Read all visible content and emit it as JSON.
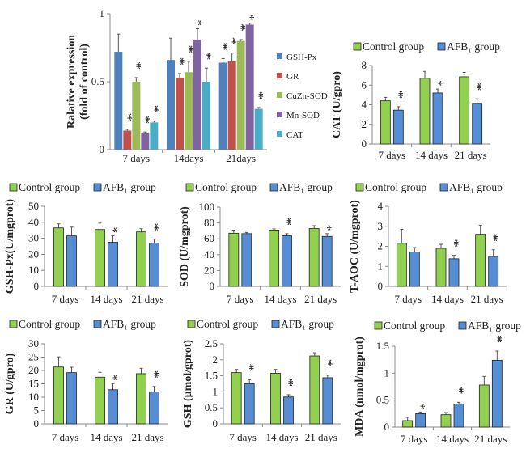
{
  "chart_data": [
    {
      "type": "bar",
      "ylabel": "Ralative expression",
      "ylabel2": "(fold of control)",
      "categories": [
        "7 days",
        "14days",
        "21days"
      ],
      "ylim": [
        0,
        1
      ],
      "yticks": [
        "0",
        "0.5",
        "1"
      ],
      "yticks_values": [
        0,
        0.5,
        1
      ],
      "legend": "right",
      "series": [
        {
          "name": "GSH-Px",
          "color": "#4f81bd",
          "values": [
            0.72,
            0.66,
            0.64
          ],
          "error": [
            0.13,
            0.16,
            0.03
          ],
          "sig": [
            "",
            "",
            "**"
          ]
        },
        {
          "name": "GR",
          "color": "#c0504d",
          "values": [
            0.14,
            0.53,
            0.65
          ],
          "error": [
            0.01,
            0.03,
            0.06
          ],
          "sig": [
            "**",
            "**",
            "**"
          ]
        },
        {
          "name": "CuZn-SOD",
          "color": "#9bbb59",
          "values": [
            0.5,
            0.57,
            0.8
          ],
          "error": [
            0.03,
            0.08,
            0.01
          ],
          "sig": [
            "**",
            "**",
            "**"
          ]
        },
        {
          "name": "Mn-SOD",
          "color": "#8064a2",
          "values": [
            0.12,
            0.81,
            0.92
          ],
          "error": [
            0.01,
            0.08,
            0.01
          ],
          "sig": [
            "**",
            "*",
            "*"
          ]
        },
        {
          "name": "CAT",
          "color": "#4bacc6",
          "values": [
            0.2,
            0.5,
            0.3
          ],
          "error": [
            0.01,
            0.1,
            0.01
          ],
          "sig": [
            "**",
            "**",
            "**"
          ]
        }
      ]
    },
    {
      "type": "bar",
      "ylabel": "CAT (U/gpro)",
      "categories": [
        "7 days",
        "14 days",
        "21 days"
      ],
      "ylim": [
        0,
        8
      ],
      "yticks": [
        "0",
        "2",
        "4",
        "6",
        "8"
      ],
      "yticks_values": [
        0,
        2,
        4,
        6,
        8
      ],
      "legend": "top",
      "series": [
        {
          "name": "Control group",
          "color": "#92d050",
          "values": [
            4.4,
            6.7,
            6.85
          ],
          "error": [
            0.35,
            0.7,
            0.45
          ],
          "sig": [
            "",
            "",
            ""
          ]
        },
        {
          "name": "AFB₁ group",
          "color": "#558ed5",
          "values": [
            3.45,
            5.2,
            4.15
          ],
          "error": [
            0.35,
            0.4,
            0.45
          ],
          "sig": [
            "**",
            "*",
            "**"
          ]
        }
      ]
    },
    {
      "type": "bar",
      "ylabel": "GSH-Px(U/mgprot)",
      "categories": [
        "7 days",
        "14 days",
        "21 days"
      ],
      "ylim": [
        0,
        50
      ],
      "yticks": [
        "0",
        "10",
        "20",
        "30",
        "40",
        "50"
      ],
      "yticks_values": [
        0,
        10,
        20,
        30,
        40,
        50
      ],
      "legend": "top",
      "series": [
        {
          "name": "Control group",
          "color": "#92d050",
          "values": [
            36.5,
            35.5,
            34
          ],
          "error": [
            2.5,
            4,
            2
          ],
          "sig": [
            "",
            "",
            ""
          ]
        },
        {
          "name": "AFB₁ group",
          "color": "#558ed5",
          "values": [
            31.5,
            27.5,
            27
          ],
          "error": [
            5.5,
            4,
            2.5
          ],
          "sig": [
            "",
            "*",
            "**"
          ]
        }
      ]
    },
    {
      "type": "bar",
      "ylabel": "SOD (U/mgprot)",
      "categories": [
        "7 days",
        "14 days",
        "21 days"
      ],
      "ylim": [
        0,
        100
      ],
      "yticks": [
        "0",
        "20",
        "40",
        "60",
        "80",
        "100"
      ],
      "yticks_values": [
        0,
        20,
        40,
        60,
        80,
        100
      ],
      "legend": "top",
      "series": [
        {
          "name": "Control group",
          "color": "#92d050",
          "values": [
            67,
            71,
            73
          ],
          "error": [
            4,
            1.5,
            3.5
          ],
          "sig": [
            "",
            "",
            ""
          ]
        },
        {
          "name": "AFB₁ group",
          "color": "#558ed5",
          "values": [
            66.5,
            64,
            63
          ],
          "error": [
            1.5,
            2.5,
            3.5
          ],
          "sig": [
            "",
            "**",
            "*"
          ]
        }
      ]
    },
    {
      "type": "bar",
      "ylabel": "T-AOC (U/mgprot)",
      "categories": [
        "7 days",
        "14 days",
        "21 days"
      ],
      "ylim": [
        0,
        4
      ],
      "yticks": [
        "0",
        "1",
        "2",
        "3",
        "4"
      ],
      "yticks_values": [
        0,
        1,
        2,
        3,
        4
      ],
      "legend": "top",
      "series": [
        {
          "name": "Control group",
          "color": "#92d050",
          "values": [
            2.15,
            1.9,
            2.6
          ],
          "error": [
            0.7,
            0.2,
            0.45
          ],
          "sig": [
            "",
            "",
            ""
          ]
        },
        {
          "name": "AFB₁ group",
          "color": "#558ed5",
          "values": [
            1.72,
            1.38,
            1.5
          ],
          "error": [
            0.22,
            0.17,
            0.33
          ],
          "sig": [
            "",
            "**",
            "**"
          ]
        }
      ]
    },
    {
      "type": "bar",
      "ylabel": "GR (U/gpro)",
      "categories": [
        "7 days",
        "14 days",
        "21 days"
      ],
      "ylim": [
        0,
        30
      ],
      "yticks": [
        "0",
        "5",
        "10",
        "15",
        "20",
        "25",
        "30"
      ],
      "yticks_values": [
        0,
        5,
        10,
        15,
        20,
        25,
        30
      ],
      "legend": "top",
      "series": [
        {
          "name": "Control group",
          "color": "#92d050",
          "values": [
            21.3,
            17.5,
            18.8
          ],
          "error": [
            3.8,
            1.8,
            2
          ],
          "sig": [
            "",
            "",
            ""
          ]
        },
        {
          "name": "AFB₁ group",
          "color": "#558ed5",
          "values": [
            19.2,
            12.8,
            12
          ],
          "error": [
            2,
            2.3,
            2
          ],
          "sig": [
            "",
            "*",
            "**"
          ]
        }
      ]
    },
    {
      "type": "bar",
      "ylabel": "GSH (μmol/gprot)",
      "categories": [
        "7 days",
        "14 days",
        "21 days"
      ],
      "ylim": [
        0,
        2.5
      ],
      "yticks": [
        "0",
        "0.5",
        "1",
        "1.5",
        "2",
        "2.5"
      ],
      "yticks_values": [
        0,
        0.5,
        1,
        1.5,
        2,
        2.5
      ],
      "legend": "top",
      "series": [
        {
          "name": "Control group",
          "color": "#92d050",
          "values": [
            1.6,
            1.58,
            2.12
          ],
          "error": [
            0.1,
            0.12,
            0.1
          ],
          "sig": [
            "",
            "",
            ""
          ]
        },
        {
          "name": "AFB₁ group",
          "color": "#558ed5",
          "values": [
            1.25,
            0.84,
            1.44
          ],
          "error": [
            0.13,
            0.07,
            0.08
          ],
          "sig": [
            "**",
            "**",
            "**"
          ]
        }
      ]
    },
    {
      "type": "bar",
      "ylabel": "MDA (nmol/mgprot)",
      "categories": [
        "7 days",
        "14 days",
        "21 days"
      ],
      "ylim": [
        0,
        1.5
      ],
      "yticks": [
        "0",
        "0.5",
        "1",
        "1.5"
      ],
      "yticks_values": [
        0,
        0.5,
        1,
        1.5
      ],
      "legend": "top",
      "series": [
        {
          "name": "Control group",
          "color": "#92d050",
          "values": [
            0.12,
            0.23,
            0.78
          ],
          "error": [
            0.06,
            0.04,
            0.16
          ],
          "sig": [
            "",
            "",
            ""
          ]
        },
        {
          "name": "AFB₁ group",
          "color": "#558ed5",
          "values": [
            0.25,
            0.43,
            1.24
          ],
          "error": [
            0.03,
            0.03,
            0.17
          ],
          "sig": [
            "*",
            "**",
            "**"
          ]
        }
      ]
    }
  ]
}
